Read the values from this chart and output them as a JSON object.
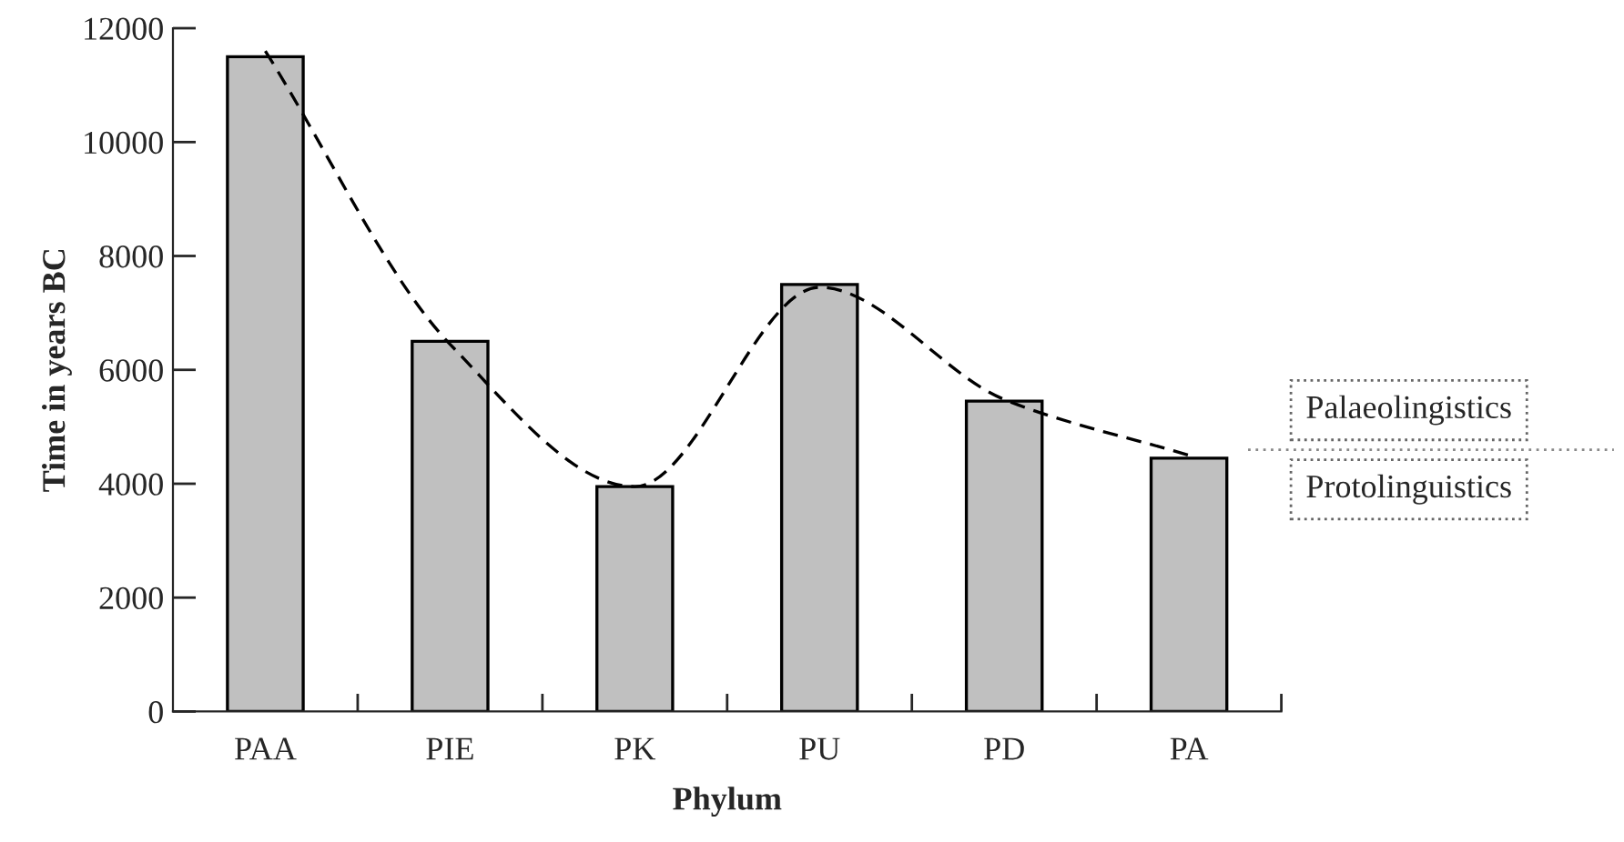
{
  "chart_data": {
    "type": "bar",
    "xlabel": "Phylum",
    "ylabel": "Time in years BC",
    "categories": [
      "PAA",
      "PIE",
      "PK",
      "PU",
      "PD",
      "PA"
    ],
    "series": [
      {
        "color": "#c0c0c0",
        "values": [
          11500,
          6500,
          3950,
          7500,
          5450,
          4450
        ]
      },
      {
        "type": "line",
        "color": "#000000",
        "line_style": "dashed",
        "values": [
          11600,
          6450,
          3950,
          7450,
          5480,
          4500
        ]
      }
    ],
    "ylim": [
      0,
      12000
    ],
    "yticks": [
      0,
      2000,
      4000,
      6000,
      8000,
      10000,
      12000
    ],
    "annotations": [
      "Palaeolingistics",
      "Protolinguistics"
    ],
    "grid": false,
    "legend": false
  }
}
